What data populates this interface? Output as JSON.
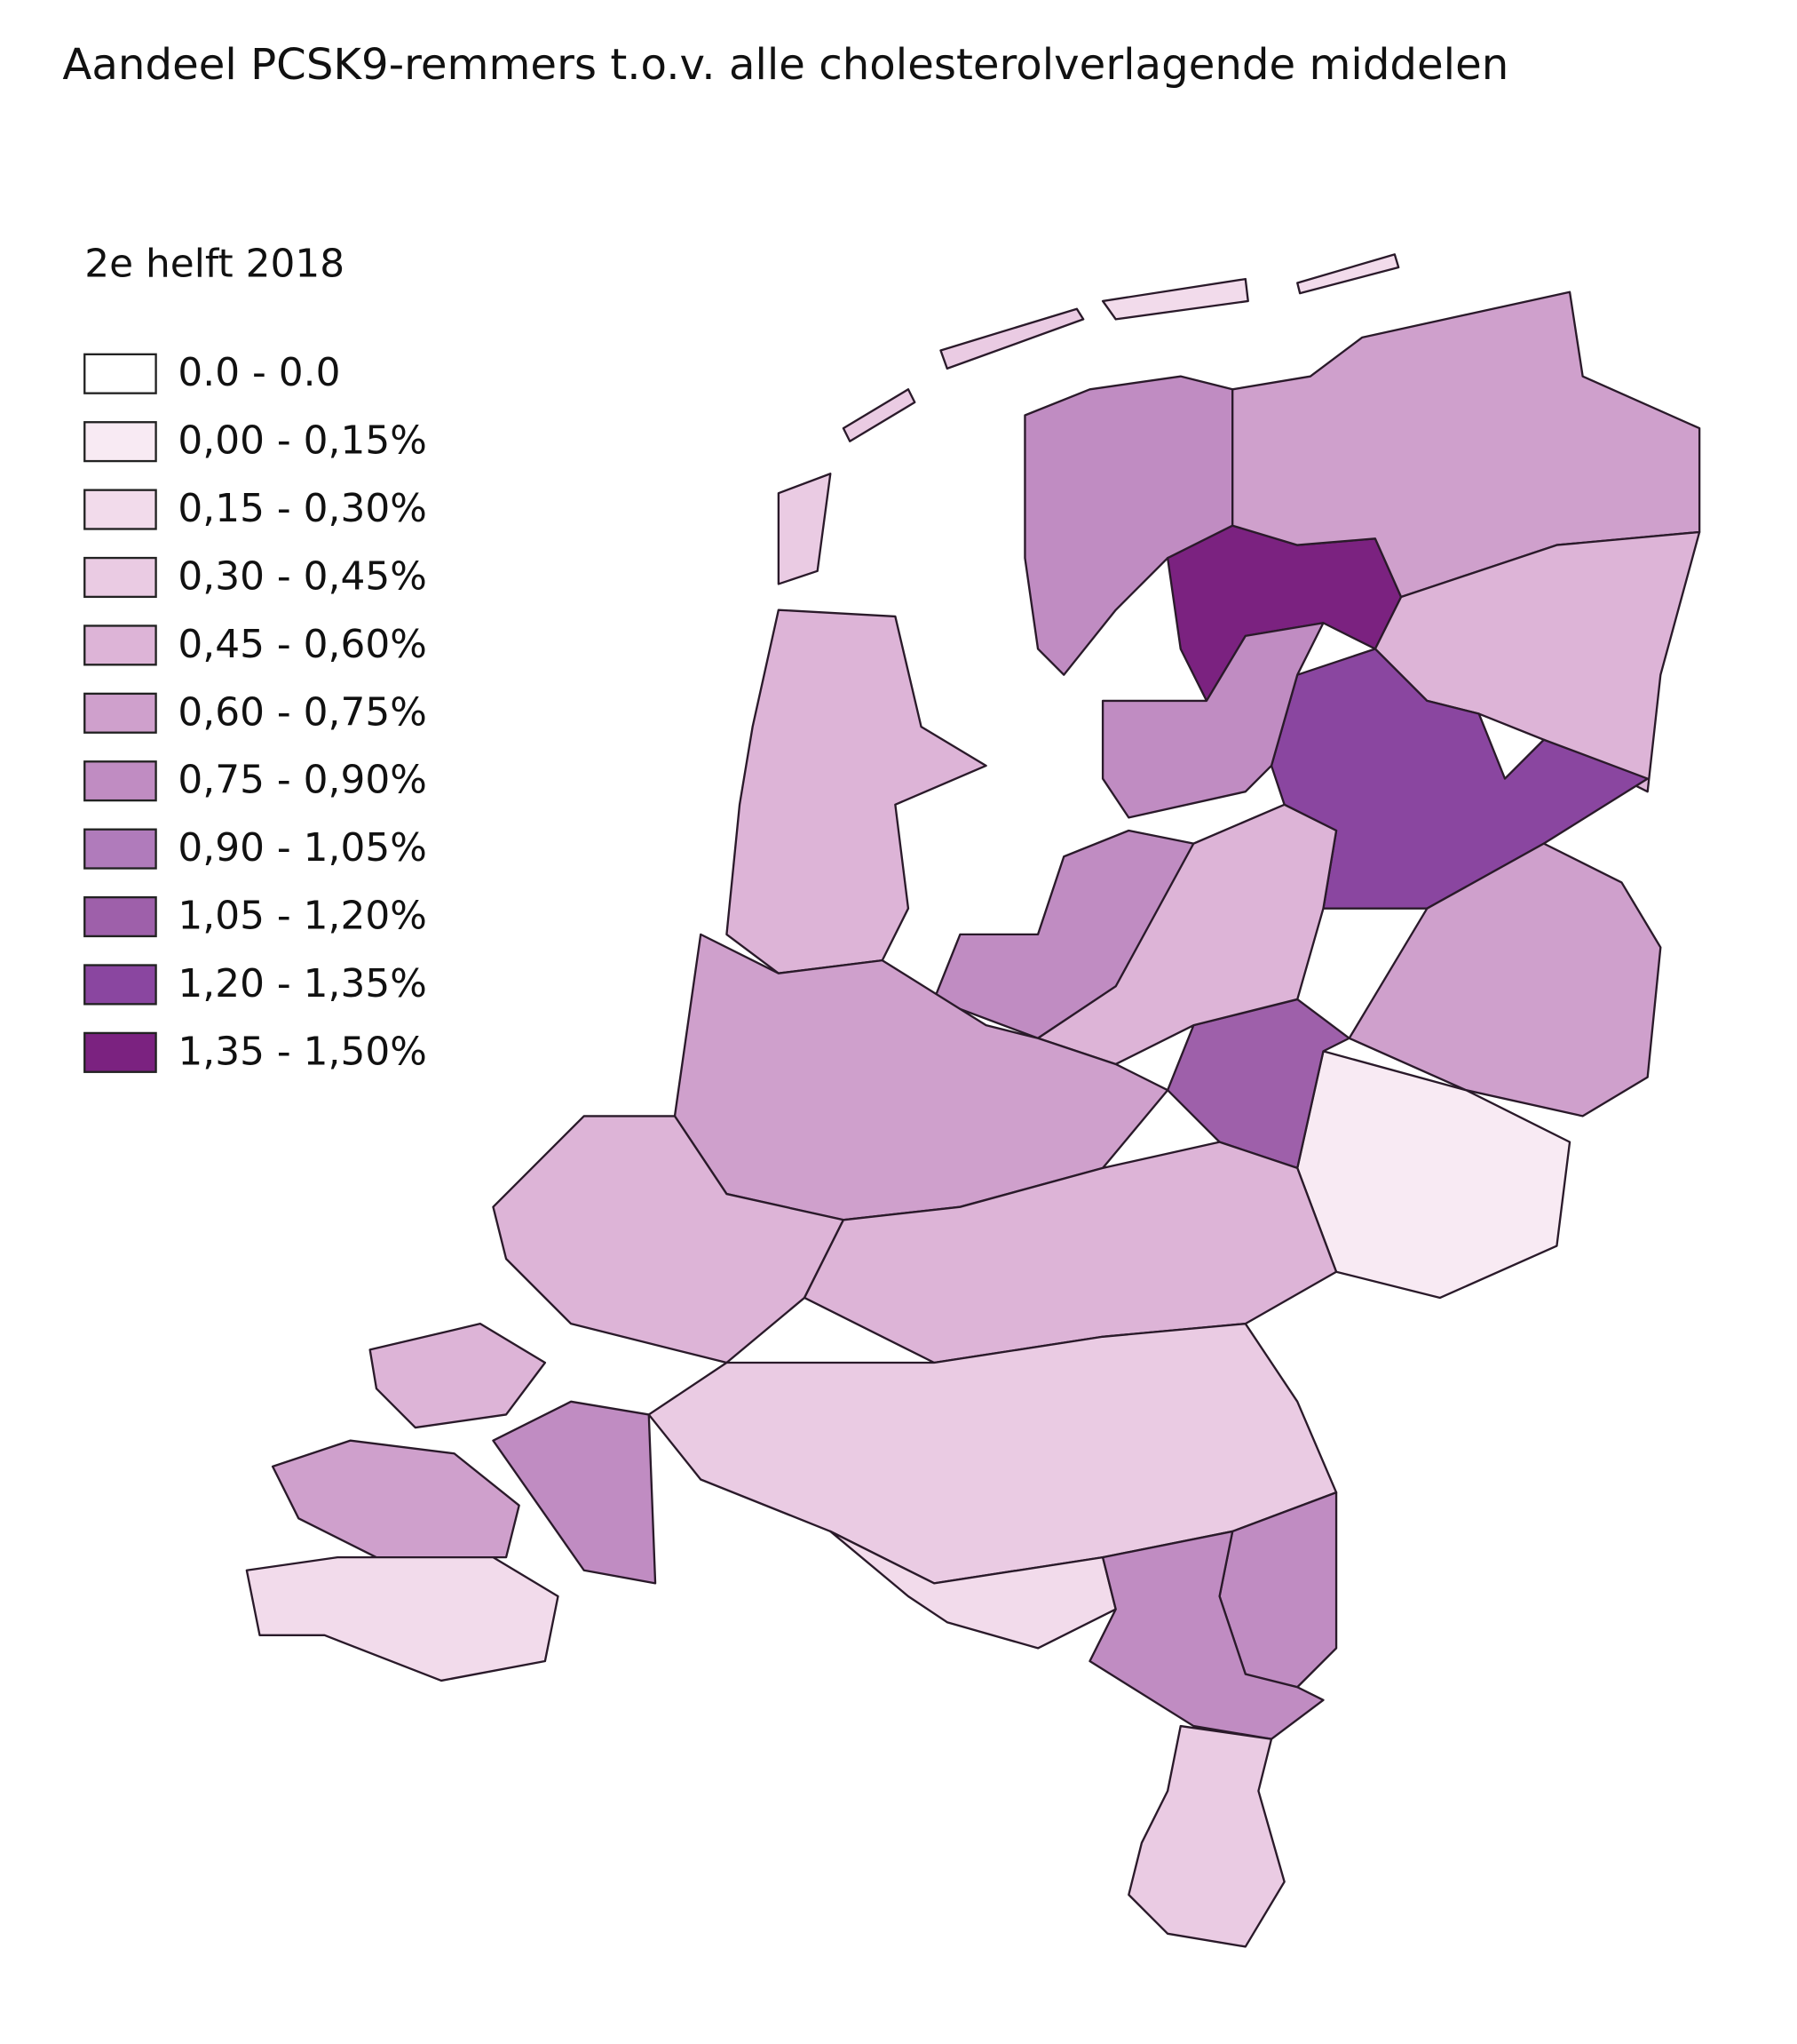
{
  "title": "Aandeel PCSK9-remmers t.o.v. alle cholesterolverlagende middelen",
  "legend": {
    "title": "2e helft 2018",
    "items": [
      {
        "label": "0.0 - 0.0",
        "color": "#ffffff"
      },
      {
        "label": "0,00 - 0,15%",
        "color": "#f8eaf3"
      },
      {
        "label": "0,15 - 0,30%",
        "color": "#f2dbeb"
      },
      {
        "label": "0,30 - 0,45%",
        "color": "#eacbe3"
      },
      {
        "label": "0,45 - 0,60%",
        "color": "#ddb4d7"
      },
      {
        "label": "0,60 - 0,75%",
        "color": "#cfa0cc"
      },
      {
        "label": "0,75 - 0,90%",
        "color": "#c08cc2"
      },
      {
        "label": "0,90 - 1,05%",
        "color": "#b07bbb"
      },
      {
        "label": "1,05 - 1,20%",
        "color": "#9e60aa"
      },
      {
        "label": "1,20 - 1,35%",
        "color": "#8a46a0"
      },
      {
        "label": "1,35 - 1,50%",
        "color": "#7b2280"
      }
    ]
  }
}
